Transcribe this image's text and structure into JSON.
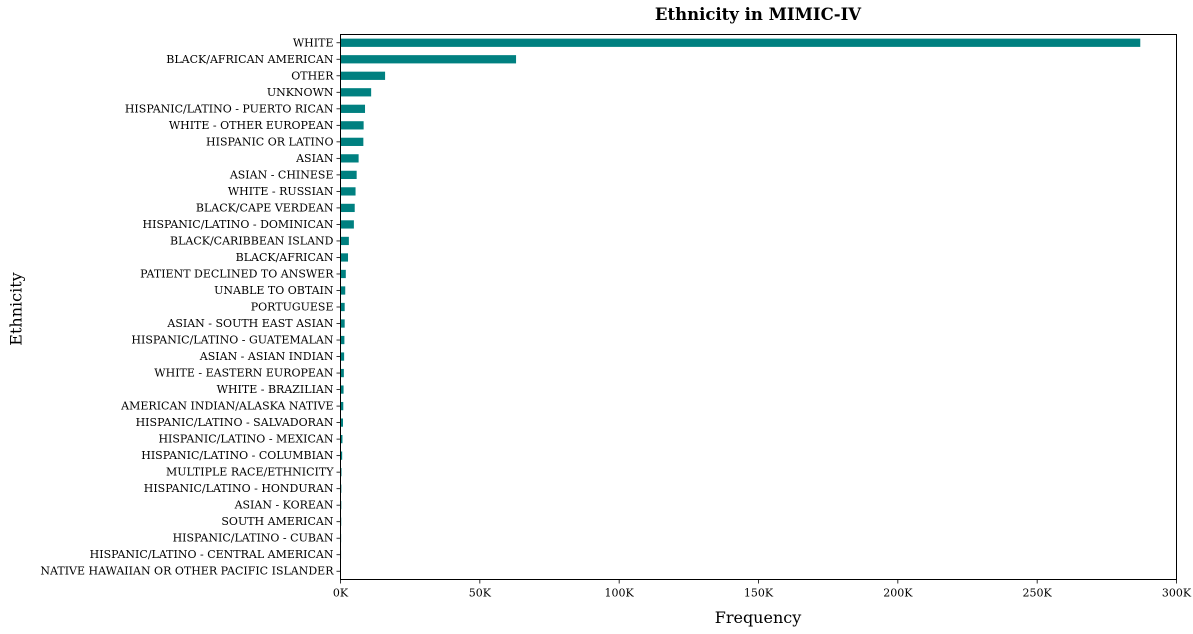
{
  "chart_data": {
    "type": "bar",
    "orientation": "horizontal",
    "title": "Ethnicity in MIMIC-IV",
    "xlabel": "Frequency",
    "ylabel": "Ethnicity",
    "xlim": [
      0,
      300000
    ],
    "xticks": [
      0,
      50000,
      100000,
      150000,
      200000,
      250000,
      300000
    ],
    "xtick_labels": [
      "0K",
      "50K",
      "100K",
      "150K",
      "200K",
      "250K",
      "300K"
    ],
    "grid": false,
    "bar_color": "#008080",
    "categories": [
      "WHITE",
      "BLACK/AFRICAN AMERICAN",
      "OTHER",
      "UNKNOWN",
      "HISPANIC/LATINO - PUERTO RICAN",
      "WHITE - OTHER EUROPEAN",
      "HISPANIC OR LATINO",
      "ASIAN",
      "ASIAN - CHINESE",
      "WHITE - RUSSIAN",
      "BLACK/CAPE VERDEAN",
      "HISPANIC/LATINO - DOMINICAN",
      "BLACK/CARIBBEAN ISLAND",
      "BLACK/AFRICAN",
      "PATIENT DECLINED TO ANSWER",
      "UNABLE TO OBTAIN",
      "PORTUGUESE",
      "ASIAN - SOUTH EAST ASIAN",
      "HISPANIC/LATINO - GUATEMALAN",
      "ASIAN - ASIAN INDIAN",
      "WHITE - EASTERN EUROPEAN",
      "WHITE - BRAZILIAN",
      "AMERICAN INDIAN/ALASKA NATIVE",
      "HISPANIC/LATINO - SALVADORAN",
      "HISPANIC/LATINO - MEXICAN",
      "HISPANIC/LATINO - COLUMBIAN",
      "MULTIPLE RACE/ETHNICITY",
      "HISPANIC/LATINO - HONDURAN",
      "ASIAN - KOREAN",
      "SOUTH AMERICAN",
      "HISPANIC/LATINO - CUBAN",
      "HISPANIC/LATINO - CENTRAL AMERICAN",
      "NATIVE HAWAIIAN OR OTHER PACIFIC ISLANDER"
    ],
    "values": [
      287000,
      63000,
      16000,
      11000,
      8800,
      8300,
      8200,
      6500,
      5800,
      5400,
      5100,
      4800,
      3000,
      2700,
      1900,
      1700,
      1500,
      1500,
      1400,
      1300,
      1200,
      1100,
      1000,
      900,
      700,
      600,
      350,
      300,
      280,
      250,
      220,
      200,
      150
    ]
  }
}
